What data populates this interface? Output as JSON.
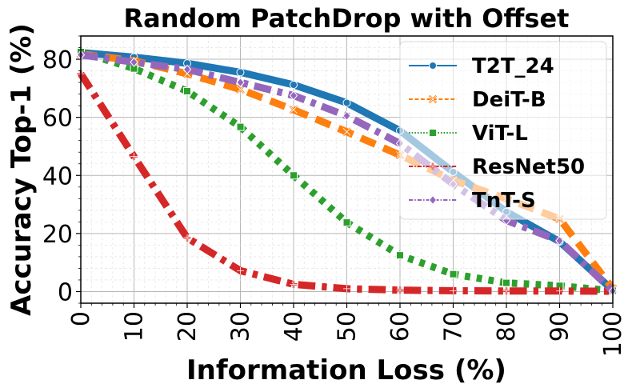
{
  "chart_data": {
    "type": "line",
    "title": "Random PatchDrop with Offset",
    "xlabel": "Information Loss (%)",
    "ylabel": "Accuracy Top-1 (%)",
    "xlim": [
      0,
      100
    ],
    "ylim": [
      -4,
      88
    ],
    "grid": true,
    "legend_position": "top-right",
    "x": [
      0,
      10,
      20,
      30,
      40,
      50,
      60,
      70,
      80,
      90,
      100
    ],
    "xticks": [
      "0",
      "10",
      "20",
      "30",
      "40",
      "50",
      "60",
      "70",
      "80",
      "90",
      "100"
    ],
    "yticks": [
      "0",
      "20",
      "40",
      "60",
      "80"
    ],
    "yticks_values": [
      0,
      20,
      40,
      60,
      80
    ],
    "series": [
      {
        "name": "T2T_24",
        "color": "#1f77b4",
        "dash": "solid",
        "marker": "circle",
        "values": [
          82.3,
          80.7,
          78.6,
          75.5,
          71.2,
          65.0,
          55.4,
          41.2,
          27.5,
          17.2,
          0.5
        ]
      },
      {
        "name": "DeiT-B",
        "color": "#ff7f0e",
        "dash": "dashed",
        "marker": "x",
        "values": [
          81.8,
          79.5,
          75.0,
          69.6,
          62.6,
          55.0,
          47.0,
          38.3,
          32.0,
          25.0,
          1.0
        ]
      },
      {
        "name": "ViT-L",
        "color": "#2ca02c",
        "dash": "dotted",
        "marker": "square",
        "values": [
          82.5,
          76.8,
          69.0,
          56.7,
          40.0,
          23.8,
          12.5,
          6.0,
          3.0,
          2.0,
          0.3
        ]
      },
      {
        "name": "ResNet50",
        "color": "#d62728",
        "dash": "dashdot",
        "marker": "plus",
        "values": [
          75.0,
          46.5,
          18.5,
          7.2,
          2.5,
          1.0,
          0.5,
          0.3,
          0.2,
          0.2,
          0.1
        ]
      },
      {
        "name": "TnT-S",
        "color": "#9467bd",
        "dash": "dashdot",
        "marker": "diamond",
        "values": [
          81.5,
          79.0,
          76.5,
          72.0,
          67.5,
          60.5,
          51.0,
          37.0,
          24.5,
          17.5,
          0.2
        ]
      }
    ]
  }
}
